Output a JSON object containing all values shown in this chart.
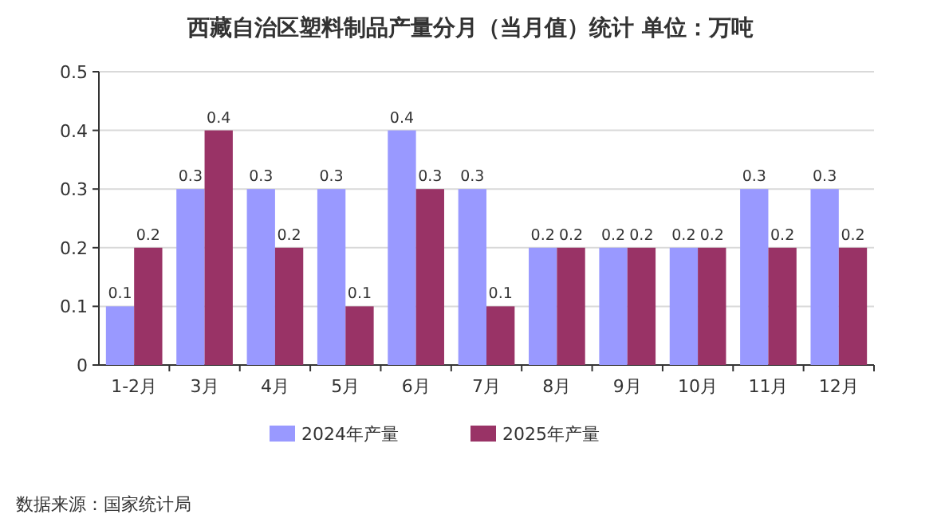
{
  "chart_data": {
    "type": "bar",
    "title": "西藏自治区塑料制品产量分月（当月值）统计  单位：万吨",
    "categories": [
      "1-2月",
      "3月",
      "4月",
      "5月",
      "6月",
      "7月",
      "8月",
      "9月",
      "10月",
      "11月",
      "12月"
    ],
    "series": [
      {
        "name": "2024年产量",
        "color": "#9999ff",
        "values": [
          0.1,
          0.3,
          0.3,
          0.3,
          0.4,
          0.3,
          0.2,
          0.2,
          0.2,
          0.3,
          0.3
        ]
      },
      {
        "name": "2025年产量",
        "color": "#993366",
        "values": [
          0.2,
          0.4,
          0.2,
          0.1,
          0.3,
          0.1,
          0.2,
          0.2,
          0.2,
          0.2,
          0.2
        ]
      }
    ],
    "ylim": [
      0,
      0.5
    ],
    "yticks": [
      0,
      0.1,
      0.2,
      0.3,
      0.4,
      0.5
    ],
    "grid": "y",
    "legend": "bottom",
    "data_labels": true,
    "annotations": [
      "数据来源：国家统计局"
    ]
  }
}
